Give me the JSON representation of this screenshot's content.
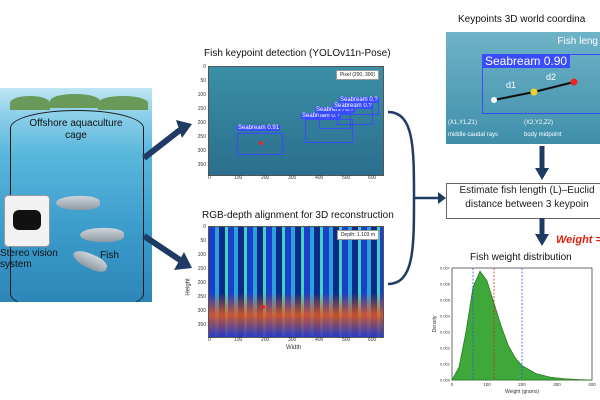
{
  "cage": {
    "title": "Offshore aquaculture cage",
    "camera_label": "Stereo vision system",
    "fish_label": "Fish"
  },
  "detection": {
    "title": "Fish keypoint detection (YOLOv11n-Pose)",
    "legend": "Pixel (200, 300)",
    "boxes": [
      {
        "label": "Seabream 0.91"
      },
      {
        "label": "Seabream 0.?"
      },
      {
        "label": "Seabream 0.?"
      },
      {
        "label": "Seabream 0.?"
      },
      {
        "label": "Seabream 0.?"
      }
    ],
    "x_ticks": [
      "0",
      "100",
      "200",
      "300",
      "400",
      "500",
      "600"
    ],
    "y_ticks": [
      "0",
      "50",
      "100",
      "150",
      "200",
      "250",
      "300",
      "350"
    ]
  },
  "depth": {
    "title": "RGB-depth alignment for 3D reconstruction",
    "legend": "Depth: 1.103 m",
    "xlabel": "Width",
    "ylabel": "Height",
    "x_ticks": [
      "0",
      "100",
      "200",
      "300",
      "400",
      "500",
      "600"
    ],
    "y_ticks": [
      "0",
      "50",
      "100",
      "150",
      "200",
      "250",
      "300",
      "350"
    ]
  },
  "keypoints": {
    "title": "Keypoints 3D world coordina",
    "fish_length_label": "Fish leng",
    "box_label": "Seabream 0.90",
    "d1": "d1",
    "d2": "d2",
    "p1": "(X1,Y1,Z1)",
    "p2": "(X2,Y2,Z2)",
    "p1_desc": "middle caudal rays",
    "p2_desc": "body midpoint"
  },
  "estimate": {
    "line1": "Estimate fish length (L)–Euclid",
    "line2": "distance between 3 keypoin"
  },
  "formula": "Weight =",
  "distribution": {
    "title": "Fish weight distribution",
    "xlabel": "Weight (grams)",
    "ylabel": "Density"
  },
  "chart_data": {
    "type": "area",
    "title": "Fish weight distribution",
    "xlabel": "Weight (grams)",
    "ylabel": "Density",
    "x": [
      0,
      20,
      40,
      60,
      80,
      100,
      120,
      140,
      160,
      180,
      200,
      240,
      280,
      320,
      360,
      400
    ],
    "values": [
      0.0,
      0.0008,
      0.003,
      0.0058,
      0.0068,
      0.0062,
      0.0048,
      0.0034,
      0.0022,
      0.0014,
      0.0009,
      0.0004,
      0.00018,
      8e-05,
      3e-05,
      0.0
    ],
    "ylim": [
      0,
      0.007
    ],
    "xlim": [
      0,
      400
    ],
    "x_ticks": [
      "0",
      "100",
      "200",
      "300",
      "400"
    ],
    "y_ticks": [
      "0.000",
      "0.001",
      "0.002",
      "0.003",
      "0.004",
      "0.005",
      "0.006",
      "0.007"
    ],
    "vlines": [
      {
        "x": 60,
        "color": "#3a4cff"
      },
      {
        "x": 120,
        "color": "#d21"
      },
      {
        "x": 200,
        "color": "#3a4cff"
      }
    ],
    "fill_color": "#3fa83a"
  }
}
